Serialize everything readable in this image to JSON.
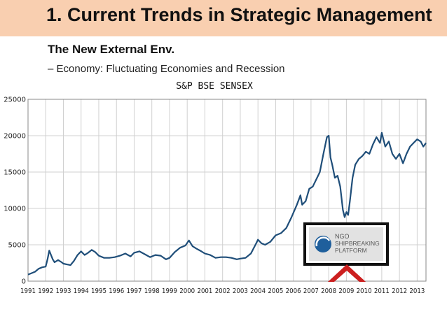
{
  "slide": {
    "title": "1. Current Trends in Strategic Management",
    "subtitle": "The New External Env.",
    "bullet": "– Economy: Fluctuating Economies and Recession"
  },
  "logo": {
    "line1": "NGO",
    "line2": "SHIPBREAKING",
    "line3": "PLATFORM"
  },
  "colors": {
    "title_bg": "#f9cfb0",
    "line": "#1f4e79",
    "arrow": "#cc1f1f"
  },
  "chart_data": {
    "type": "line",
    "title": "S&P BSE SENSEX",
    "xlabel": "",
    "ylabel": "",
    "xlim": [
      1991,
      2013.5
    ],
    "ylim": [
      0,
      25000
    ],
    "grid": true,
    "yticks": [
      0,
      5000,
      10000,
      15000,
      20000,
      25000
    ],
    "ytick_labels": [
      "0",
      "5000",
      "10000",
      "15000",
      "20000",
      "25000"
    ],
    "xticks": [
      "1991",
      "1992",
      "1993",
      "1994",
      "1995",
      "1996",
      "1997",
      "1998",
      "1999",
      "2000",
      "2001",
      "2002",
      "2003",
      "2004",
      "2005",
      "2006",
      "2007",
      "2008",
      "2009",
      "2010",
      "2011",
      "2012",
      "2013"
    ],
    "series": [
      {
        "x": [
          1991.0,
          1991.2,
          1991.4,
          1991.6,
          1991.8,
          1992.0,
          1992.1,
          1992.2,
          1992.3,
          1992.4,
          1992.5,
          1992.7,
          1992.9,
          1993.0,
          1993.2,
          1993.4,
          1993.6,
          1993.8,
          1994.0,
          1994.2,
          1994.4,
          1994.6,
          1994.8,
          1995.0,
          1995.3,
          1995.6,
          1995.9,
          1996.2,
          1996.5,
          1996.8,
          1997.0,
          1997.3,
          1997.6,
          1997.9,
          1998.2,
          1998.5,
          1998.8,
          1999.0,
          1999.3,
          1999.6,
          1999.9,
          2000.1,
          2000.3,
          2000.5,
          2000.8,
          2001.0,
          2001.3,
          2001.6,
          2001.9,
          2002.2,
          2002.5,
          2002.8,
          2003.0,
          2003.3,
          2003.6,
          2003.9,
          2004.0,
          2004.2,
          2004.4,
          2004.7,
          2005.0,
          2005.3,
          2005.6,
          2005.9,
          2006.2,
          2006.4,
          2006.5,
          2006.7,
          2006.9,
          2007.1,
          2007.3,
          2007.5,
          2007.7,
          2007.9,
          2008.0,
          2008.1,
          2008.2,
          2008.35,
          2008.5,
          2008.65,
          2008.8,
          2008.9,
          2009.0,
          2009.1,
          2009.2,
          2009.35,
          2009.5,
          2009.7,
          2009.9,
          2010.1,
          2010.3,
          2010.5,
          2010.7,
          2010.9,
          2011.0,
          2011.2,
          2011.4,
          2011.6,
          2011.8,
          2012.0,
          2012.2,
          2012.4,
          2012.6,
          2012.8,
          2013.0,
          2013.2,
          2013.35,
          2013.5
        ],
        "values": [
          900,
          1100,
          1300,
          1700,
          1900,
          2000,
          3000,
          4200,
          3600,
          3000,
          2600,
          2900,
          2600,
          2400,
          2300,
          2200,
          2800,
          3600,
          4100,
          3600,
          3900,
          4300,
          4000,
          3500,
          3200,
          3200,
          3300,
          3500,
          3800,
          3400,
          3900,
          4100,
          3700,
          3300,
          3600,
          3500,
          3000,
          3200,
          4000,
          4600,
          4900,
          5600,
          4800,
          4500,
          4100,
          3800,
          3600,
          3200,
          3300,
          3300,
          3200,
          3000,
          3100,
          3200,
          3800,
          5200,
          5700,
          5200,
          5000,
          5400,
          6300,
          6600,
          7300,
          8800,
          10500,
          11800,
          10500,
          11000,
          12700,
          13000,
          14000,
          15000,
          17500,
          19800,
          20000,
          17000,
          16000,
          14200,
          14500,
          13000,
          9800,
          8800,
          9500,
          9100,
          11000,
          14200,
          16000,
          16800,
          17200,
          17800,
          17500,
          18800,
          19800,
          19000,
          20400,
          18500,
          19200,
          17500,
          16800,
          17500,
          16200,
          17500,
          18500,
          19000,
          19500,
          19200,
          18500,
          19000
        ]
      }
    ]
  }
}
